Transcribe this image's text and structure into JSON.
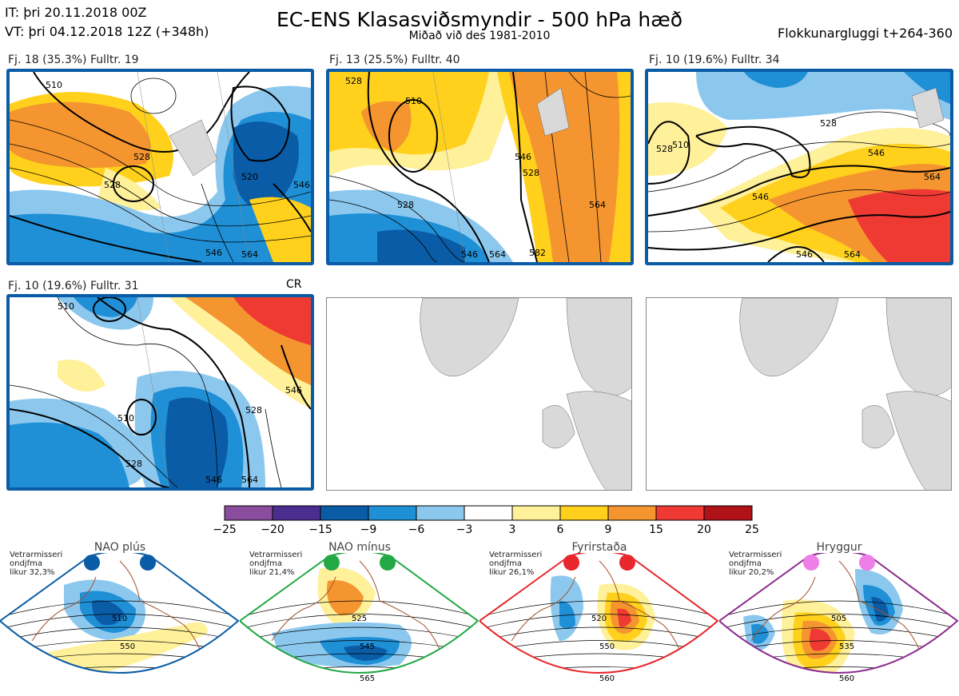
{
  "header": {
    "it_line": "IT: þri 20.11.2018 00Z",
    "vt_line": "VT: þri 04.12.2018 12Z  (+348h)",
    "title": "EC-ENS Klasasviðsmyndir - 500 hPa hæð",
    "subtitle": "Miðað við des 1981-2010",
    "window": "Flokkunargluggi t+264-360"
  },
  "panels": [
    {
      "label": "Fj. 18 (35.3%)   Fulltr. 19",
      "contours": [
        "510",
        "528",
        "528",
        "520",
        "546",
        "546",
        "564"
      ],
      "border_color": "#0b5ca6"
    },
    {
      "label": "Fj. 13 (25.5%)   Fulltr. 40",
      "contours": [
        "528",
        "510",
        "528",
        "546",
        "528",
        "564",
        "546",
        "564",
        "582"
      ],
      "border_color": "#0b5ca6"
    },
    {
      "label": "Fj. 10 (19.6%)   Fulltr. 34",
      "contours": [
        "528",
        "510",
        "528",
        "546",
        "564",
        "546",
        "546",
        "564"
      ],
      "border_color": "#0b5ca6"
    },
    {
      "label": "Fj. 10 (19.6%)   Fulltr. 31",
      "contours": [
        "510",
        "510",
        "528",
        "528",
        "546",
        "546",
        "564"
      ],
      "border_color": "#0b5ca6",
      "tag": "CR"
    }
  ],
  "colorbar": {
    "labels": [
      "−25",
      "−20",
      "−15",
      "−9",
      "−6",
      "−3",
      "3",
      "6",
      "9",
      "15",
      "20",
      "25"
    ],
    "colors": [
      "#8a4c9c",
      "#4b2d8f",
      "#0b5ca6",
      "#1f8fd6",
      "#8cc8ee",
      "#ffffff",
      "#fff09a",
      "#ffd11c",
      "#f5952f",
      "#ee3a33",
      "#b01217"
    ]
  },
  "regimes": [
    {
      "name": "NAO plús",
      "note": [
        "Vetrarmisseri",
        "ondjfma",
        "likur 32,3%"
      ],
      "color": "#0b5ca6",
      "contours": [
        "510",
        "550"
      ]
    },
    {
      "name": "NAO mínus",
      "note": [
        "Vetrarmisseri",
        "ondjfma",
        "likur 21,4%"
      ],
      "color": "#22a845",
      "contours": [
        "525",
        "545",
        "565"
      ]
    },
    {
      "name": "Fyrirstaða",
      "note": [
        "Vetrarmisseri",
        "ondjfma",
        "likur 26,1%"
      ],
      "color": "#e8262b",
      "contours": [
        "520",
        "550",
        "560"
      ]
    },
    {
      "name": "Hryggur",
      "note": [
        "Vetrarmisseri",
        "ondjfma",
        "likur 20,2%"
      ],
      "color": "#8b2c8f",
      "contours": [
        "505",
        "535",
        "560"
      ]
    }
  ]
}
